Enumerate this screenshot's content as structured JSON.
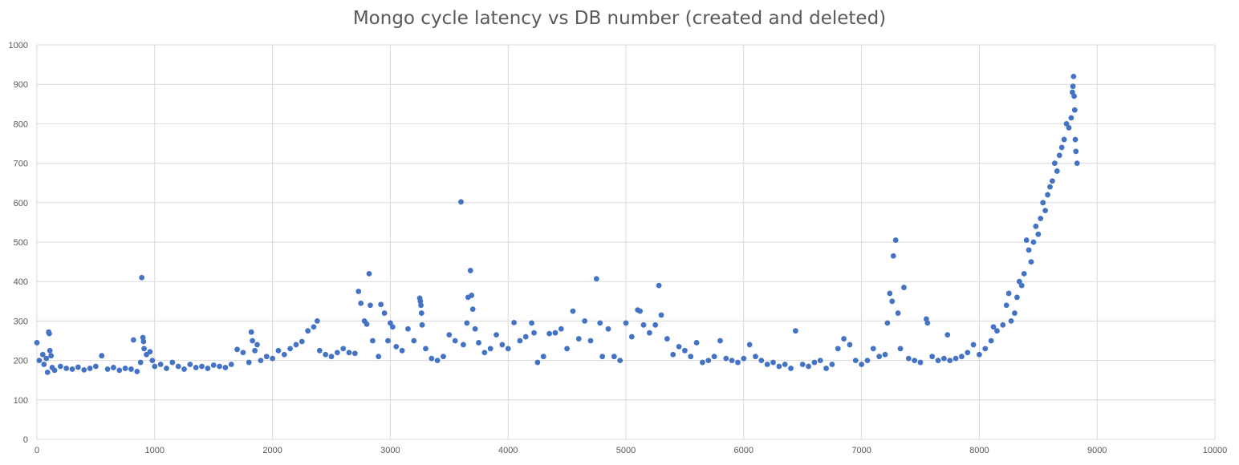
{
  "chart_data": {
    "type": "scatter",
    "title": "Mongo cycle latency vs DB number (created and deleted)",
    "xlabel": "",
    "ylabel": "",
    "xlim": [
      0,
      10000
    ],
    "ylim": [
      0,
      1000
    ],
    "x_ticks": [
      0,
      1000,
      2000,
      3000,
      4000,
      5000,
      6000,
      7000,
      8000,
      9000,
      10000
    ],
    "y_ticks": [
      0,
      100,
      200,
      300,
      400,
      500,
      600,
      700,
      800,
      900,
      1000
    ],
    "grid": true,
    "legend": "none",
    "marker_color": "#4472C4",
    "gridline_color": "#D9D9D9",
    "series": [
      {
        "points": [
          [
            0,
            245
          ],
          [
            20,
            200
          ],
          [
            50,
            215
          ],
          [
            60,
            190
          ],
          [
            80,
            205
          ],
          [
            90,
            170
          ],
          [
            100,
            272
          ],
          [
            105,
            268
          ],
          [
            110,
            225
          ],
          [
            120,
            212
          ],
          [
            130,
            182
          ],
          [
            150,
            175
          ],
          [
            200,
            185
          ],
          [
            250,
            180
          ],
          [
            300,
            178
          ],
          [
            350,
            183
          ],
          [
            400,
            176
          ],
          [
            450,
            180
          ],
          [
            500,
            185
          ],
          [
            550,
            212
          ],
          [
            600,
            178
          ],
          [
            650,
            182
          ],
          [
            700,
            175
          ],
          [
            750,
            180
          ],
          [
            800,
            178
          ],
          [
            820,
            252
          ],
          [
            850,
            172
          ],
          [
            880,
            195
          ],
          [
            890,
            410
          ],
          [
            900,
            258
          ],
          [
            905,
            248
          ],
          [
            910,
            230
          ],
          [
            930,
            215
          ],
          [
            960,
            222
          ],
          [
            980,
            200
          ],
          [
            1000,
            185
          ],
          [
            1050,
            190
          ],
          [
            1100,
            180
          ],
          [
            1150,
            195
          ],
          [
            1200,
            185
          ],
          [
            1250,
            178
          ],
          [
            1300,
            190
          ],
          [
            1350,
            182
          ],
          [
            1400,
            185
          ],
          [
            1450,
            180
          ],
          [
            1500,
            188
          ],
          [
            1550,
            185
          ],
          [
            1600,
            182
          ],
          [
            1650,
            190
          ],
          [
            1700,
            228
          ],
          [
            1750,
            220
          ],
          [
            1800,
            195
          ],
          [
            1820,
            272
          ],
          [
            1830,
            250
          ],
          [
            1850,
            225
          ],
          [
            1870,
            240
          ],
          [
            1900,
            200
          ],
          [
            1950,
            210
          ],
          [
            2000,
            205
          ],
          [
            2050,
            225
          ],
          [
            2100,
            215
          ],
          [
            2150,
            230
          ],
          [
            2200,
            240
          ],
          [
            2250,
            248
          ],
          [
            2300,
            275
          ],
          [
            2350,
            285
          ],
          [
            2380,
            300
          ],
          [
            2400,
            225
          ],
          [
            2450,
            215
          ],
          [
            2500,
            210
          ],
          [
            2550,
            220
          ],
          [
            2600,
            230
          ],
          [
            2650,
            220
          ],
          [
            2700,
            218
          ],
          [
            2730,
            375
          ],
          [
            2750,
            345
          ],
          [
            2780,
            300
          ],
          [
            2800,
            292
          ],
          [
            2820,
            420
          ],
          [
            2830,
            340
          ],
          [
            2850,
            250
          ],
          [
            2900,
            210
          ],
          [
            2920,
            342
          ],
          [
            2950,
            320
          ],
          [
            2980,
            250
          ],
          [
            3000,
            295
          ],
          [
            3020,
            285
          ],
          [
            3050,
            235
          ],
          [
            3100,
            225
          ],
          [
            3150,
            280
          ],
          [
            3200,
            250
          ],
          [
            3250,
            358
          ],
          [
            3255,
            350
          ],
          [
            3260,
            340
          ],
          [
            3265,
            320
          ],
          [
            3270,
            290
          ],
          [
            3300,
            230
          ],
          [
            3350,
            205
          ],
          [
            3400,
            200
          ],
          [
            3450,
            210
          ],
          [
            3500,
            265
          ],
          [
            3550,
            250
          ],
          [
            3600,
            602
          ],
          [
            3620,
            240
          ],
          [
            3650,
            295
          ],
          [
            3660,
            360
          ],
          [
            3680,
            428
          ],
          [
            3690,
            365
          ],
          [
            3700,
            330
          ],
          [
            3720,
            280
          ],
          [
            3750,
            245
          ],
          [
            3800,
            220
          ],
          [
            3850,
            230
          ],
          [
            3900,
            265
          ],
          [
            3950,
            240
          ],
          [
            4000,
            230
          ],
          [
            4050,
            296
          ],
          [
            4100,
            250
          ],
          [
            4150,
            260
          ],
          [
            4200,
            295
          ],
          [
            4220,
            270
          ],
          [
            4250,
            195
          ],
          [
            4300,
            210
          ],
          [
            4350,
            268
          ],
          [
            4400,
            270
          ],
          [
            4450,
            280
          ],
          [
            4500,
            230
          ],
          [
            4550,
            325
          ],
          [
            4600,
            255
          ],
          [
            4650,
            300
          ],
          [
            4700,
            250
          ],
          [
            4750,
            407
          ],
          [
            4780,
            295
          ],
          [
            4800,
            210
          ],
          [
            4850,
            280
          ],
          [
            4900,
            210
          ],
          [
            4950,
            200
          ],
          [
            5000,
            295
          ],
          [
            5050,
            260
          ],
          [
            5100,
            328
          ],
          [
            5120,
            325
          ],
          [
            5150,
            290
          ],
          [
            5200,
            270
          ],
          [
            5250,
            290
          ],
          [
            5280,
            390
          ],
          [
            5300,
            315
          ],
          [
            5350,
            255
          ],
          [
            5400,
            215
          ],
          [
            5450,
            235
          ],
          [
            5500,
            225
          ],
          [
            5550,
            210
          ],
          [
            5600,
            245
          ],
          [
            5650,
            195
          ],
          [
            5700,
            200
          ],
          [
            5750,
            210
          ],
          [
            5800,
            250
          ],
          [
            5850,
            205
          ],
          [
            5900,
            200
          ],
          [
            5950,
            195
          ],
          [
            6000,
            205
          ],
          [
            6050,
            240
          ],
          [
            6100,
            210
          ],
          [
            6150,
            200
          ],
          [
            6200,
            190
          ],
          [
            6250,
            195
          ],
          [
            6300,
            185
          ],
          [
            6350,
            190
          ],
          [
            6400,
            180
          ],
          [
            6440,
            275
          ],
          [
            6500,
            190
          ],
          [
            6550,
            185
          ],
          [
            6600,
            195
          ],
          [
            6650,
            200
          ],
          [
            6700,
            180
          ],
          [
            6750,
            190
          ],
          [
            6800,
            230
          ],
          [
            6850,
            255
          ],
          [
            6900,
            240
          ],
          [
            6950,
            200
          ],
          [
            7000,
            190
          ],
          [
            7050,
            200
          ],
          [
            7100,
            230
          ],
          [
            7150,
            210
          ],
          [
            7200,
            215
          ],
          [
            7220,
            295
          ],
          [
            7240,
            370
          ],
          [
            7260,
            350
          ],
          [
            7270,
            465
          ],
          [
            7290,
            505
          ],
          [
            7310,
            320
          ],
          [
            7330,
            230
          ],
          [
            7360,
            385
          ],
          [
            7400,
            205
          ],
          [
            7450,
            200
          ],
          [
            7500,
            195
          ],
          [
            7550,
            305
          ],
          [
            7560,
            295
          ],
          [
            7600,
            210
          ],
          [
            7650,
            200
          ],
          [
            7700,
            205
          ],
          [
            7730,
            265
          ],
          [
            7750,
            200
          ],
          [
            7800,
            205
          ],
          [
            7850,
            210
          ],
          [
            7900,
            220
          ],
          [
            7950,
            240
          ],
          [
            8000,
            215
          ],
          [
            8050,
            230
          ],
          [
            8100,
            250
          ],
          [
            8120,
            285
          ],
          [
            8150,
            275
          ],
          [
            8200,
            290
          ],
          [
            8230,
            340
          ],
          [
            8250,
            370
          ],
          [
            8270,
            300
          ],
          [
            8300,
            320
          ],
          [
            8320,
            360
          ],
          [
            8340,
            400
          ],
          [
            8360,
            390
          ],
          [
            8380,
            420
          ],
          [
            8400,
            505
          ],
          [
            8420,
            480
          ],
          [
            8440,
            450
          ],
          [
            8460,
            500
          ],
          [
            8480,
            540
          ],
          [
            8500,
            520
          ],
          [
            8520,
            560
          ],
          [
            8540,
            600
          ],
          [
            8560,
            580
          ],
          [
            8580,
            620
          ],
          [
            8600,
            640
          ],
          [
            8620,
            655
          ],
          [
            8640,
            700
          ],
          [
            8660,
            680
          ],
          [
            8680,
            720
          ],
          [
            8700,
            740
          ],
          [
            8720,
            760
          ],
          [
            8740,
            800
          ],
          [
            8760,
            790
          ],
          [
            8780,
            815
          ],
          [
            8790,
            880
          ],
          [
            8795,
            895
          ],
          [
            8800,
            920
          ],
          [
            8805,
            870
          ],
          [
            8810,
            835
          ],
          [
            8815,
            760
          ],
          [
            8820,
            730
          ],
          [
            8830,
            700
          ]
        ]
      }
    ]
  }
}
